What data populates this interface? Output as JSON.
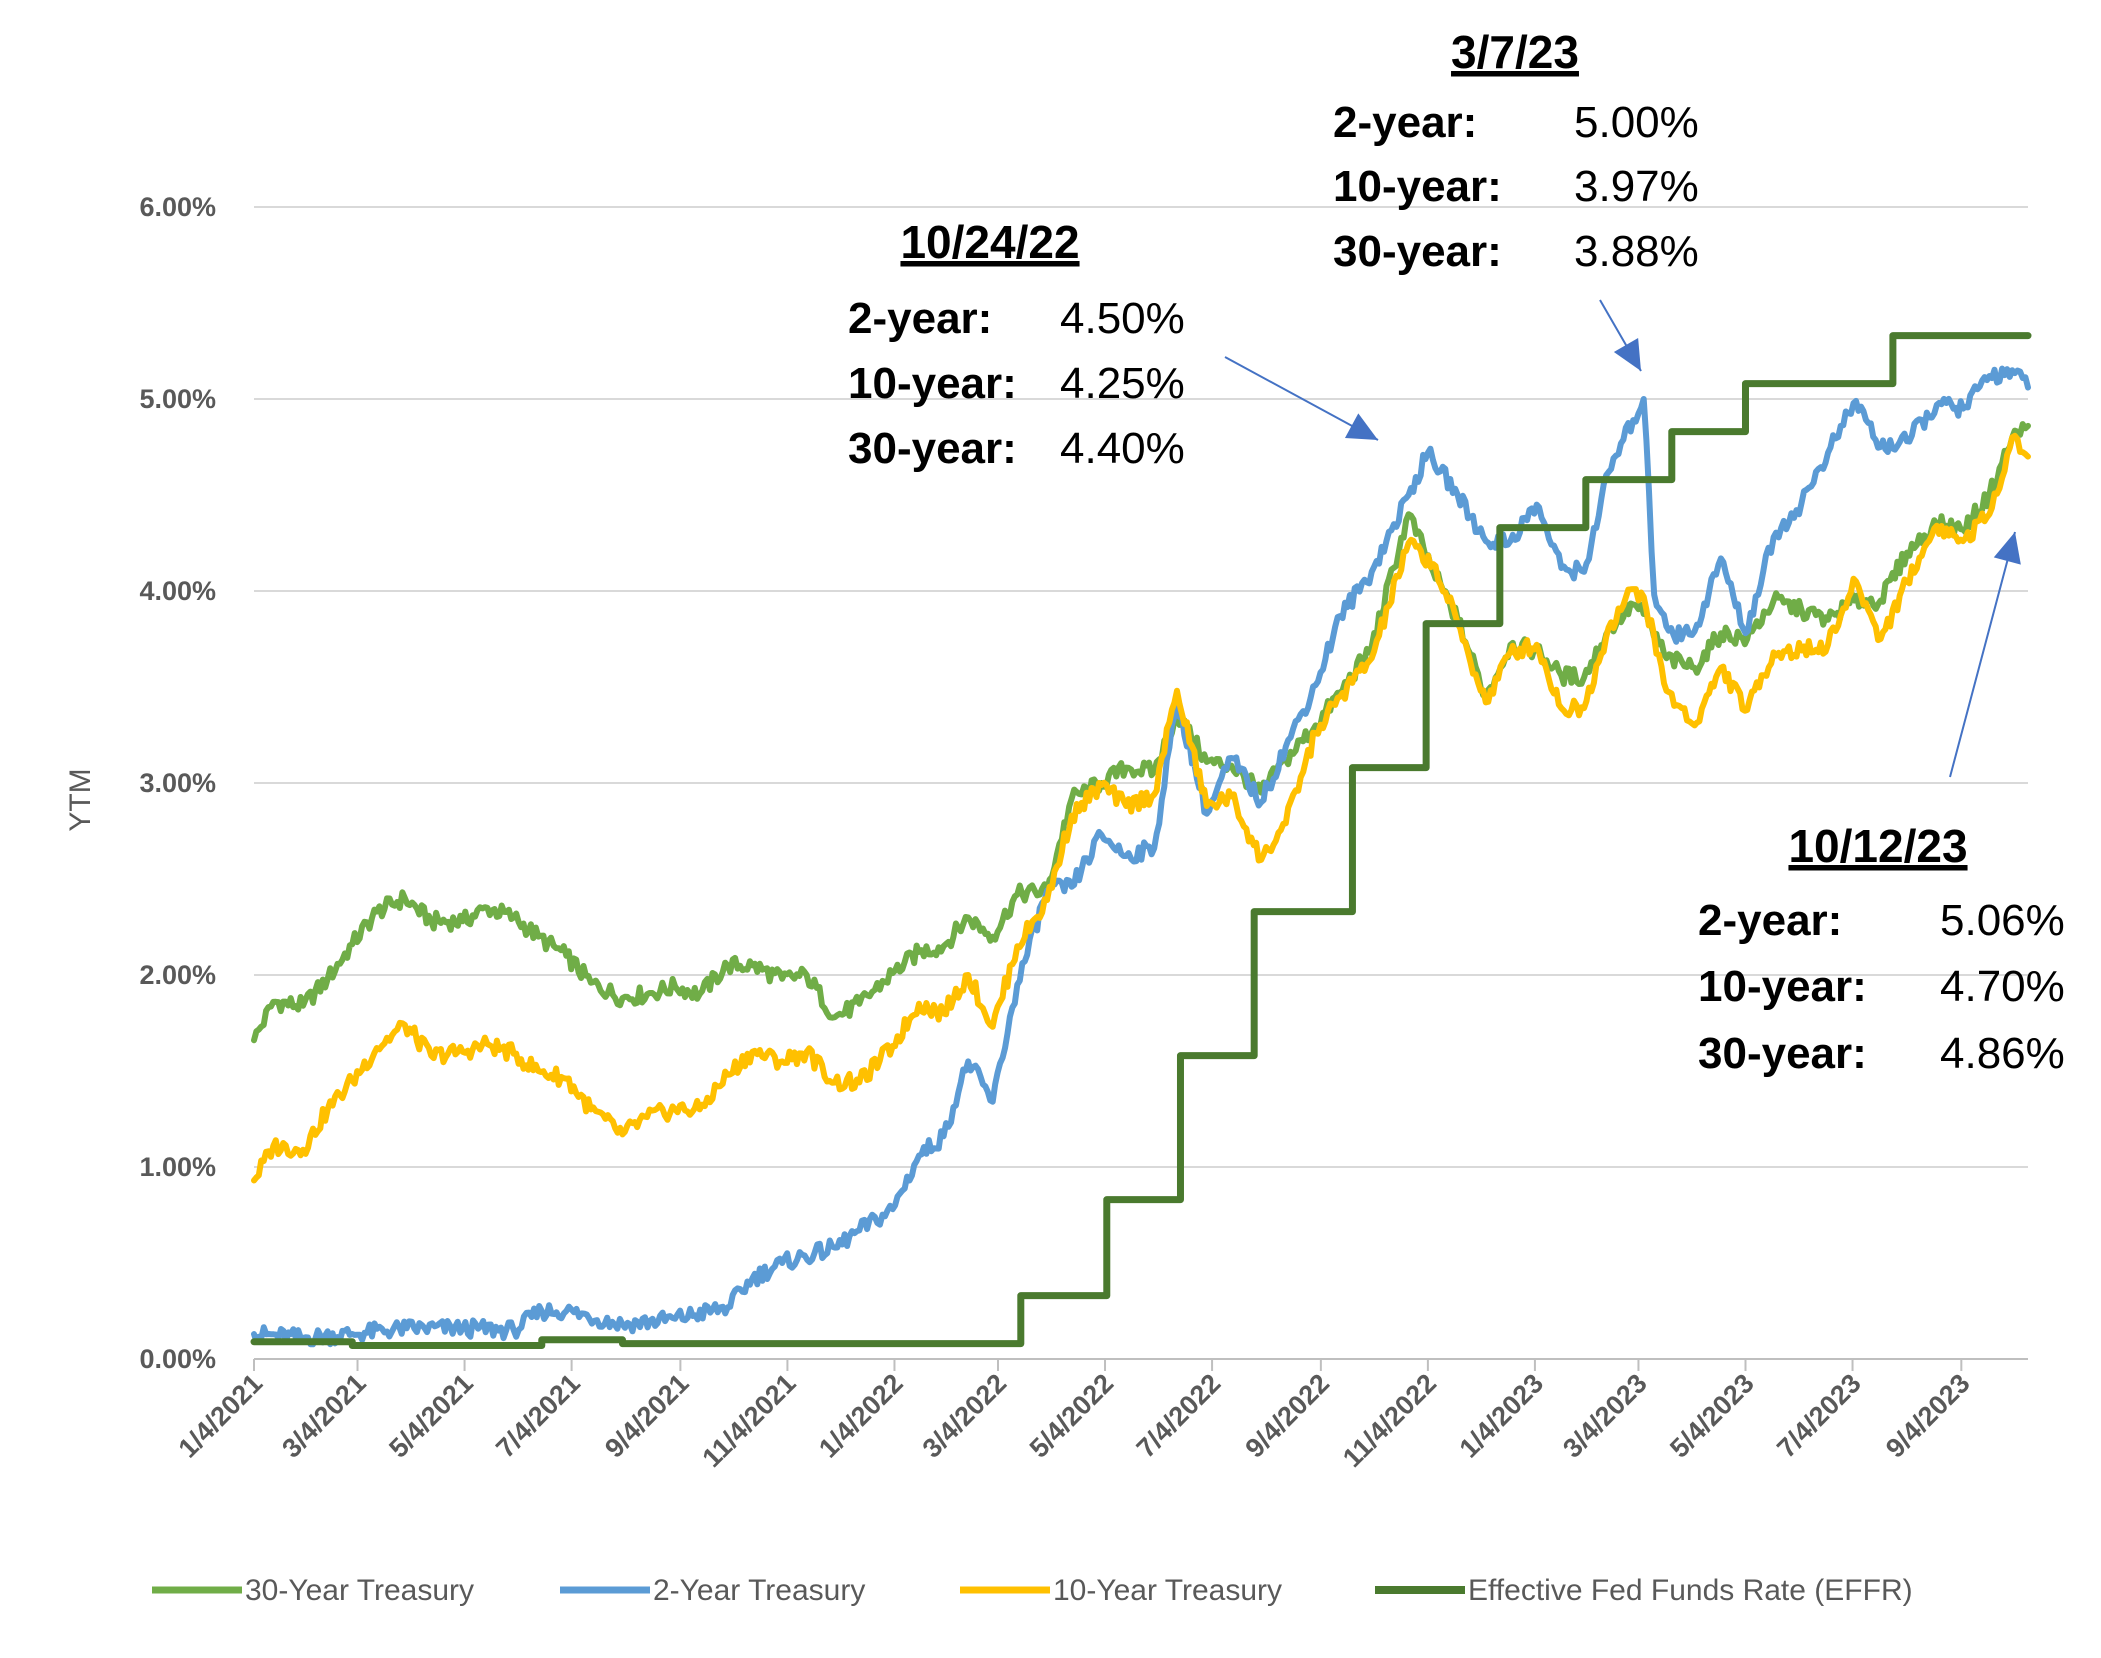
{
  "chart_data": {
    "type": "line",
    "title": "",
    "xlabel": "",
    "ylabel": "YTM",
    "ylim": [
      0,
      6
    ],
    "grid": true,
    "legend_position": "bottom",
    "x_range": [
      "2021-01-04",
      "2023-10-12"
    ],
    "x_ticks": [
      "1/4/2021",
      "3/4/2021",
      "5/4/2021",
      "7/4/2021",
      "9/4/2021",
      "11/4/2021",
      "1/4/2022",
      "3/4/2022",
      "5/4/2022",
      "7/4/2022",
      "9/4/2022",
      "11/4/2022",
      "1/4/2023",
      "3/4/2023",
      "5/4/2023",
      "7/4/2023",
      "9/4/2023"
    ],
    "y_ticks": [
      "0.00%",
      "1.00%",
      "2.00%",
      "3.00%",
      "4.00%",
      "5.00%",
      "6.00%"
    ],
    "series": [
      {
        "name": "30-Year Treasury",
        "color": "#70AD47",
        "points": [
          [
            "2021-01-04",
            1.66
          ],
          [
            "2021-01-15",
            1.86
          ],
          [
            "2021-02-01",
            1.84
          ],
          [
            "2021-02-15",
            1.98
          ],
          [
            "2021-03-01",
            2.16
          ],
          [
            "2021-03-15",
            2.33
          ],
          [
            "2021-03-31",
            2.4
          ],
          [
            "2021-04-15",
            2.28
          ],
          [
            "2021-05-03",
            2.28
          ],
          [
            "2021-05-17",
            2.35
          ],
          [
            "2021-06-01",
            2.3
          ],
          [
            "2021-06-15",
            2.2
          ],
          [
            "2021-07-01",
            2.1
          ],
          [
            "2021-07-15",
            1.96
          ],
          [
            "2021-08-02",
            1.88
          ],
          [
            "2021-08-16",
            1.9
          ],
          [
            "2021-09-01",
            1.94
          ],
          [
            "2021-09-15",
            1.9
          ],
          [
            "2021-10-01",
            2.05
          ],
          [
            "2021-10-15",
            2.05
          ],
          [
            "2021-11-01",
            1.98
          ],
          [
            "2021-11-15",
            2.0
          ],
          [
            "2021-12-01",
            1.78
          ],
          [
            "2021-12-15",
            1.85
          ],
          [
            "2022-01-03",
            2.01
          ],
          [
            "2022-01-18",
            2.12
          ],
          [
            "2022-02-01",
            2.15
          ],
          [
            "2022-02-15",
            2.3
          ],
          [
            "2022-03-01",
            2.2
          ],
          [
            "2022-03-15",
            2.42
          ],
          [
            "2022-04-01",
            2.44
          ],
          [
            "2022-04-15",
            2.92
          ],
          [
            "2022-05-02",
            3.0
          ],
          [
            "2022-05-16",
            3.08
          ],
          [
            "2022-06-01",
            3.06
          ],
          [
            "2022-06-14",
            3.36
          ],
          [
            "2022-07-01",
            3.11
          ],
          [
            "2022-07-15",
            3.09
          ],
          [
            "2022-08-01",
            2.95
          ],
          [
            "2022-08-15",
            3.12
          ],
          [
            "2022-09-01",
            3.3
          ],
          [
            "2022-09-15",
            3.47
          ],
          [
            "2022-10-03",
            3.71
          ],
          [
            "2022-10-24",
            4.4
          ],
          [
            "2022-11-07",
            4.1
          ],
          [
            "2022-11-21",
            3.85
          ],
          [
            "2022-12-07",
            3.45
          ],
          [
            "2022-12-21",
            3.72
          ],
          [
            "2023-01-05",
            3.69
          ],
          [
            "2023-01-19",
            3.56
          ],
          [
            "2023-02-01",
            3.55
          ],
          [
            "2023-02-15",
            3.8
          ],
          [
            "2023-03-01",
            3.93
          ],
          [
            "2023-03-07",
            3.88
          ],
          [
            "2023-03-20",
            3.65
          ],
          [
            "2023-04-05",
            3.6
          ],
          [
            "2023-04-20",
            3.78
          ],
          [
            "2023-05-05",
            3.75
          ],
          [
            "2023-05-20",
            3.95
          ],
          [
            "2023-06-05",
            3.9
          ],
          [
            "2023-06-20",
            3.85
          ],
          [
            "2023-07-05",
            3.95
          ],
          [
            "2023-07-20",
            3.95
          ],
          [
            "2023-08-04",
            4.2
          ],
          [
            "2023-08-21",
            4.35
          ],
          [
            "2023-09-05",
            4.32
          ],
          [
            "2023-09-20",
            4.5
          ],
          [
            "2023-10-03",
            4.8
          ],
          [
            "2023-10-12",
            4.86
          ]
        ]
      },
      {
        "name": "2-Year Treasury",
        "color": "#5B9BD5",
        "points": [
          [
            "2021-01-04",
            0.13
          ],
          [
            "2021-02-01",
            0.11
          ],
          [
            "2021-03-01",
            0.13
          ],
          [
            "2021-04-01",
            0.16
          ],
          [
            "2021-05-03",
            0.16
          ],
          [
            "2021-06-01",
            0.15
          ],
          [
            "2021-06-17",
            0.25
          ],
          [
            "2021-07-01",
            0.25
          ],
          [
            "2021-08-02",
            0.18
          ],
          [
            "2021-09-01",
            0.21
          ],
          [
            "2021-10-01",
            0.27
          ],
          [
            "2021-10-15",
            0.42
          ],
          [
            "2021-11-01",
            0.5
          ],
          [
            "2021-12-01",
            0.58
          ],
          [
            "2021-12-15",
            0.67
          ],
          [
            "2022-01-03",
            0.78
          ],
          [
            "2022-01-18",
            1.06
          ],
          [
            "2022-02-01",
            1.16
          ],
          [
            "2022-02-15",
            1.55
          ],
          [
            "2022-03-01",
            1.34
          ],
          [
            "2022-03-15",
            1.95
          ],
          [
            "2022-04-01",
            2.44
          ],
          [
            "2022-04-15",
            2.46
          ],
          [
            "2022-05-02",
            2.73
          ],
          [
            "2022-05-16",
            2.62
          ],
          [
            "2022-06-01",
            2.66
          ],
          [
            "2022-06-14",
            3.43
          ],
          [
            "2022-07-01",
            2.84
          ],
          [
            "2022-07-15",
            3.13
          ],
          [
            "2022-08-01",
            2.9
          ],
          [
            "2022-08-15",
            3.19
          ],
          [
            "2022-09-01",
            3.51
          ],
          [
            "2022-09-15",
            3.87
          ],
          [
            "2022-10-03",
            4.1
          ],
          [
            "2022-10-24",
            4.5
          ],
          [
            "2022-11-04",
            4.72
          ],
          [
            "2022-11-21",
            4.5
          ],
          [
            "2022-12-07",
            4.26
          ],
          [
            "2022-12-21",
            4.26
          ],
          [
            "2023-01-05",
            4.45
          ],
          [
            "2023-01-19",
            4.12
          ],
          [
            "2023-02-01",
            4.1
          ],
          [
            "2023-02-15",
            4.62
          ],
          [
            "2023-03-01",
            4.89
          ],
          [
            "2023-03-07",
            5.0
          ],
          [
            "2023-03-13",
            3.98
          ],
          [
            "2023-03-24",
            3.77
          ],
          [
            "2023-04-05",
            3.79
          ],
          [
            "2023-04-20",
            4.17
          ],
          [
            "2023-05-04",
            3.78
          ],
          [
            "2023-05-20",
            4.28
          ],
          [
            "2023-06-05",
            4.46
          ],
          [
            "2023-06-20",
            4.72
          ],
          [
            "2023-07-06",
            4.99
          ],
          [
            "2023-07-20",
            4.75
          ],
          [
            "2023-08-04",
            4.78
          ],
          [
            "2023-08-21",
            4.97
          ],
          [
            "2023-09-05",
            4.95
          ],
          [
            "2023-09-20",
            5.12
          ],
          [
            "2023-10-03",
            5.15
          ],
          [
            "2023-10-12",
            5.06
          ]
        ]
      },
      {
        "name": "10-Year Treasury",
        "color": "#FFC000",
        "points": [
          [
            "2021-01-04",
            0.93
          ],
          [
            "2021-01-15",
            1.11
          ],
          [
            "2021-02-01",
            1.09
          ],
          [
            "2021-02-15",
            1.3
          ],
          [
            "2021-03-01",
            1.45
          ],
          [
            "2021-03-15",
            1.62
          ],
          [
            "2021-03-31",
            1.74
          ],
          [
            "2021-04-15",
            1.58
          ],
          [
            "2021-05-03",
            1.6
          ],
          [
            "2021-05-17",
            1.64
          ],
          [
            "2021-06-01",
            1.59
          ],
          [
            "2021-06-15",
            1.5
          ],
          [
            "2021-07-01",
            1.46
          ],
          [
            "2021-07-15",
            1.3
          ],
          [
            "2021-08-02",
            1.17
          ],
          [
            "2021-08-16",
            1.26
          ],
          [
            "2021-09-01",
            1.3
          ],
          [
            "2021-09-15",
            1.3
          ],
          [
            "2021-10-01",
            1.48
          ],
          [
            "2021-10-15",
            1.6
          ],
          [
            "2021-11-01",
            1.55
          ],
          [
            "2021-11-15",
            1.6
          ],
          [
            "2021-12-01",
            1.44
          ],
          [
            "2021-12-15",
            1.44
          ],
          [
            "2022-01-03",
            1.63
          ],
          [
            "2022-01-18",
            1.85
          ],
          [
            "2022-02-01",
            1.8
          ],
          [
            "2022-02-15",
            2.0
          ],
          [
            "2022-03-01",
            1.73
          ],
          [
            "2022-03-15",
            2.15
          ],
          [
            "2022-04-01",
            2.39
          ],
          [
            "2022-04-15",
            2.83
          ],
          [
            "2022-05-02",
            2.99
          ],
          [
            "2022-05-16",
            2.88
          ],
          [
            "2022-06-01",
            2.94
          ],
          [
            "2022-06-14",
            3.48
          ],
          [
            "2022-07-01",
            2.88
          ],
          [
            "2022-07-15",
            2.93
          ],
          [
            "2022-08-01",
            2.6
          ],
          [
            "2022-08-15",
            2.79
          ],
          [
            "2022-09-01",
            3.26
          ],
          [
            "2022-09-15",
            3.45
          ],
          [
            "2022-10-03",
            3.65
          ],
          [
            "2022-10-24",
            4.25
          ],
          [
            "2022-11-07",
            4.14
          ],
          [
            "2022-11-21",
            3.83
          ],
          [
            "2022-12-07",
            3.42
          ],
          [
            "2022-12-21",
            3.68
          ],
          [
            "2023-01-05",
            3.72
          ],
          [
            "2023-01-19",
            3.39
          ],
          [
            "2023-02-01",
            3.39
          ],
          [
            "2023-02-15",
            3.81
          ],
          [
            "2023-03-01",
            4.01
          ],
          [
            "2023-03-07",
            3.97
          ],
          [
            "2023-03-20",
            3.48
          ],
          [
            "2023-04-05",
            3.3
          ],
          [
            "2023-04-20",
            3.6
          ],
          [
            "2023-05-05",
            3.38
          ],
          [
            "2023-05-20",
            3.68
          ],
          [
            "2023-06-05",
            3.69
          ],
          [
            "2023-06-20",
            3.72
          ],
          [
            "2023-07-06",
            4.05
          ],
          [
            "2023-07-20",
            3.75
          ],
          [
            "2023-08-04",
            4.05
          ],
          [
            "2023-08-21",
            4.34
          ],
          [
            "2023-09-05",
            4.26
          ],
          [
            "2023-09-20",
            4.4
          ],
          [
            "2023-10-03",
            4.8
          ],
          [
            "2023-10-12",
            4.7
          ]
        ]
      },
      {
        "name": "Effective Fed Funds Rate (EFFR)",
        "color": "#4A7A2E",
        "step": true,
        "points": [
          [
            "2021-01-04",
            0.09
          ],
          [
            "2021-03-01",
            0.07
          ],
          [
            "2021-06-17",
            0.1
          ],
          [
            "2021-08-02",
            0.08
          ],
          [
            "2022-03-17",
            0.33
          ],
          [
            "2022-05-05",
            0.83
          ],
          [
            "2022-06-16",
            1.58
          ],
          [
            "2022-07-28",
            2.33
          ],
          [
            "2022-09-22",
            3.08
          ],
          [
            "2022-11-03",
            3.83
          ],
          [
            "2022-12-15",
            4.33
          ],
          [
            "2023-02-02",
            4.58
          ],
          [
            "2023-03-23",
            4.83
          ],
          [
            "2023-05-04",
            5.08
          ],
          [
            "2023-07-27",
            5.33
          ],
          [
            "2023-10-12",
            5.33
          ]
        ]
      }
    ],
    "annotations": [
      {
        "date": "10/24/22",
        "rows": [
          {
            "key": "2-year:",
            "value": "4.50%"
          },
          {
            "key": "10-year:",
            "value": "4.25%"
          },
          {
            "key": "30-year:",
            "value": "4.40%"
          }
        ]
      },
      {
        "date": "3/7/23",
        "rows": [
          {
            "key": "2-year:",
            "value": "5.00%"
          },
          {
            "key": "10-year:",
            "value": "3.97%"
          },
          {
            "key": "30-year:",
            "value": "3.88%"
          }
        ]
      },
      {
        "date": "10/12/23",
        "rows": [
          {
            "key": "2-year:",
            "value": "5.06%"
          },
          {
            "key": "10-year:",
            "value": "4.70%"
          },
          {
            "key": "30-year:",
            "value": "4.86%"
          }
        ]
      }
    ]
  }
}
